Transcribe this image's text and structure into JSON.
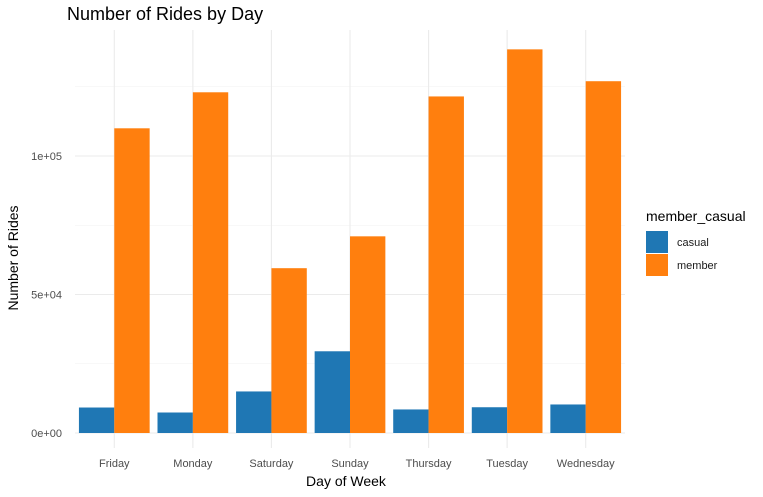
{
  "chart_data": {
    "type": "bar",
    "title": "Number of Rides by Day",
    "xlabel": "Day of Week",
    "ylabel": "Number of Rides",
    "categories": [
      "Friday",
      "Monday",
      "Saturday",
      "Sunday",
      "Thursday",
      "Tuesday",
      "Wednesday"
    ],
    "series": [
      {
        "name": "casual",
        "color": "#1f77b4",
        "values": [
          9200,
          7400,
          15000,
          29500,
          8500,
          9300,
          10300
        ]
      },
      {
        "name": "member",
        "color": "#ff7f0e",
        "values": [
          110000,
          123000,
          59500,
          71000,
          121500,
          138500,
          127000
        ]
      }
    ],
    "y_ticks": [
      0,
      50000,
      100000
    ],
    "y_tick_labels": [
      "0e+00",
      "5e+04",
      "1e+05"
    ],
    "ylim": [
      0,
      145000
    ],
    "legend_title": "member_casual",
    "legend_position": "right",
    "grid": true
  }
}
